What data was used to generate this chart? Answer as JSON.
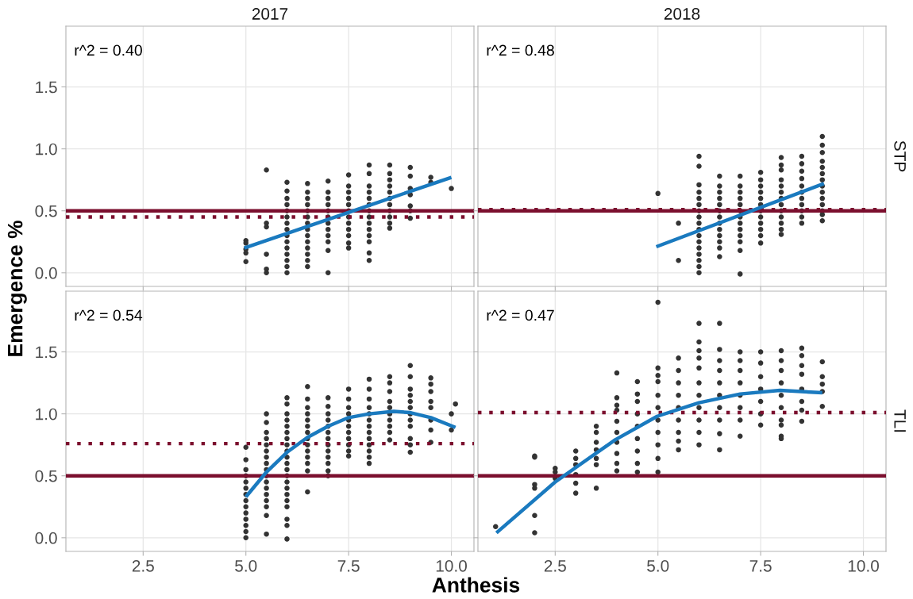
{
  "chart_data": [
    {
      "type": "scatter",
      "title": "2017",
      "ylabel": "Emergence %",
      "annotations": [
        "r^2 = 0.40"
      ],
      "xlim": [
        0.62,
        10.55
      ],
      "ylim": [
        -0.11,
        1.99
      ],
      "xticks": [
        2.5,
        5,
        7.5,
        10
      ],
      "yticks": [
        {
          "value": 0,
          "label": "0.0"
        },
        {
          "value": 0.5,
          "label": "0.5"
        },
        {
          "value": 1,
          "label": "1.0"
        },
        {
          "value": 1.5,
          "label": "1.5"
        }
      ],
      "grid": true,
      "tick_labels": "y",
      "ref_lines": [
        {
          "axis": "y",
          "value": 0.5,
          "color": "#7b0f2e",
          "line_style": "solid"
        },
        {
          "axis": "y",
          "value": 0.45,
          "color": "#7b0f2e",
          "line_style": "dotted"
        }
      ],
      "series": [
        {
          "marker": "circle",
          "color": "#333333",
          "x": [
            5,
            5,
            5,
            5,
            5,
            5.5,
            5.5,
            5.5,
            5.5,
            5.5,
            5.5,
            6,
            6,
            6,
            6,
            6,
            6,
            6,
            6,
            6,
            6,
            6,
            6,
            6,
            6,
            6,
            6.5,
            6.5,
            6.5,
            6.5,
            6.5,
            6.5,
            6.5,
            6.5,
            6.5,
            6.5,
            6.5,
            6.5,
            6.5,
            6.5,
            7,
            7,
            7,
            7,
            7,
            7,
            7,
            7,
            7,
            7,
            7,
            7,
            7.5,
            7.5,
            7.5,
            7.5,
            7.5,
            7.5,
            7.5,
            7.5,
            7.5,
            7.5,
            7.5,
            7.5,
            8,
            8,
            8,
            8,
            8,
            8,
            8,
            8,
            8,
            8,
            8,
            8,
            8,
            8,
            8.5,
            8.5,
            8.5,
            8.5,
            8.5,
            8.5,
            8.5,
            8.5,
            8.5,
            8.5,
            8.5,
            9,
            9,
            9,
            9,
            9,
            9,
            9,
            9.5,
            9.5,
            10
          ],
          "values": [
            0.26,
            0.24,
            0.19,
            0.16,
            0.09,
            0.83,
            0.4,
            0.37,
            0.15,
            0.03,
            0.0,
            0.73,
            0.66,
            0.6,
            0.55,
            0.5,
            0.45,
            0.4,
            0.35,
            0.3,
            0.25,
            0.2,
            0.15,
            0.1,
            0.05,
            0.0,
            0.72,
            0.65,
            0.6,
            0.55,
            0.5,
            0.45,
            0.4,
            0.35,
            0.3,
            0.25,
            0.2,
            0.15,
            0.1,
            0.05,
            0.74,
            0.65,
            0.6,
            0.55,
            0.5,
            0.45,
            0.4,
            0.35,
            0.3,
            0.25,
            0.18,
            0.0,
            0.79,
            0.7,
            0.65,
            0.6,
            0.55,
            0.5,
            0.45,
            0.4,
            0.35,
            0.3,
            0.24,
            0.2,
            0.87,
            0.8,
            0.7,
            0.65,
            0.6,
            0.55,
            0.5,
            0.45,
            0.4,
            0.35,
            0.3,
            0.25,
            0.16,
            0.1,
            0.87,
            0.8,
            0.75,
            0.7,
            0.65,
            0.6,
            0.55,
            0.5,
            0.45,
            0.4,
            0.36,
            0.85,
            0.78,
            0.68,
            0.63,
            0.54,
            0.5,
            0.44,
            0.77,
            0.73,
            0.68
          ]
        },
        {
          "type": "line",
          "color": "#1a7abf",
          "x": [
            4.96,
            10.0
          ],
          "values": [
            0.2,
            0.77
          ]
        }
      ]
    },
    {
      "type": "scatter",
      "title": "2018",
      "y2label": "STP",
      "annotations": [
        "r^2 = 0.48"
      ],
      "xlim": [
        0.62,
        10.55
      ],
      "ylim": [
        -0.11,
        1.99
      ],
      "xticks": [
        2.5,
        5,
        7.5,
        10
      ],
      "yticks": [
        0,
        0.5,
        1,
        1.5
      ],
      "grid": true,
      "tick_labels": false,
      "ref_lines": [
        {
          "axis": "y",
          "value": 0.5,
          "color": "#7b0f2e",
          "line_style": "solid"
        },
        {
          "axis": "y",
          "value": 0.51,
          "color": "#7b0f2e",
          "line_style": "dotted"
        }
      ],
      "series": [
        {
          "marker": "circle",
          "color": "#333333",
          "x": [
            5,
            5.5,
            5.5,
            6,
            6,
            6,
            6,
            6,
            6,
            6,
            6,
            6,
            6,
            6,
            6,
            6,
            6,
            6,
            6,
            6,
            6.5,
            6.5,
            6.5,
            6.5,
            6.5,
            6.5,
            6.5,
            6.5,
            6.5,
            6.5,
            6.5,
            6.5,
            6.5,
            7,
            7,
            7,
            7,
            7,
            7,
            7,
            7,
            7,
            7,
            7,
            7,
            7,
            7.5,
            7.5,
            7.5,
            7.5,
            7.5,
            7.5,
            7.5,
            7.5,
            7.5,
            7.5,
            7.5,
            7.5,
            8,
            8,
            8,
            8,
            8,
            8,
            8,
            8,
            8,
            8,
            8,
            8,
            8,
            8.5,
            8.5,
            8.5,
            8.5,
            8.5,
            8.5,
            8.5,
            8.5,
            8.5,
            8.5,
            8.5,
            9,
            9,
            9,
            9,
            9,
            9,
            9,
            9,
            9,
            9,
            9,
            9,
            9,
            9
          ],
          "values": [
            0.64,
            0.4,
            0.1,
            0.94,
            0.86,
            0.71,
            0.65,
            0.6,
            0.55,
            0.5,
            0.45,
            0.4,
            0.35,
            0.3,
            0.25,
            0.2,
            0.15,
            0.1,
            0.05,
            0.0,
            0.78,
            0.7,
            0.65,
            0.6,
            0.55,
            0.5,
            0.45,
            0.4,
            0.35,
            0.3,
            0.25,
            0.2,
            0.13,
            0.78,
            0.7,
            0.65,
            0.6,
            0.55,
            0.5,
            0.45,
            0.4,
            0.35,
            0.3,
            0.25,
            0.18,
            -0.01,
            0.81,
            0.75,
            0.7,
            0.65,
            0.6,
            0.55,
            0.5,
            0.45,
            0.4,
            0.35,
            0.3,
            0.24,
            0.93,
            0.87,
            0.83,
            0.75,
            0.7,
            0.65,
            0.6,
            0.55,
            0.5,
            0.45,
            0.4,
            0.35,
            0.31,
            0.94,
            0.88,
            0.82,
            0.76,
            0.7,
            0.65,
            0.6,
            0.55,
            0.5,
            0.45,
            0.4,
            1.1,
            1.03,
            0.97,
            0.9,
            0.85,
            0.8,
            0.75,
            0.7,
            0.65,
            0.6,
            0.55,
            0.5,
            0.47,
            0.42
          ]
        },
        {
          "type": "line",
          "color": "#1a7abf",
          "x": [
            4.96,
            9.04
          ],
          "values": [
            0.21,
            0.72
          ]
        }
      ]
    },
    {
      "type": "scatter",
      "xlabel": "Anthesis",
      "annotations": [
        "r^2 = 0.54"
      ],
      "xlim": [
        0.62,
        10.55
      ],
      "ylim": [
        -0.11,
        1.99
      ],
      "xticks": [
        {
          "value": 2.5,
          "label": "2.5"
        },
        {
          "value": 5,
          "label": "5.0"
        },
        {
          "value": 7.5,
          "label": "7.5"
        },
        {
          "value": 10,
          "label": "10.0"
        }
      ],
      "yticks": [
        {
          "value": 0,
          "label": "0.0"
        },
        {
          "value": 0.5,
          "label": "0.5"
        },
        {
          "value": 1,
          "label": "1.0"
        },
        {
          "value": 1.5,
          "label": "1.5"
        }
      ],
      "grid": true,
      "ref_lines": [
        {
          "axis": "y",
          "value": 0.5,
          "color": "#7b0f2e",
          "line_style": "solid"
        },
        {
          "axis": "y",
          "value": 0.76,
          "color": "#7b0f2e",
          "line_style": "dotted"
        }
      ],
      "series": [
        {
          "marker": "circle",
          "color": "#333333",
          "x": [
            5,
            5,
            5,
            5,
            5,
            5,
            5,
            5,
            5,
            5,
            5,
            5,
            5,
            5,
            5.5,
            5.5,
            5.5,
            5.5,
            5.5,
            5.5,
            5.5,
            5.5,
            5.5,
            5.5,
            5.5,
            5.5,
            5.5,
            5.5,
            5.5,
            5.5,
            5.5,
            6,
            6,
            6,
            6,
            6,
            6,
            6,
            6,
            6,
            6,
            6,
            6,
            6,
            6,
            6,
            6,
            6,
            6,
            6,
            6,
            6,
            6.5,
            6.5,
            6.5,
            6.5,
            6.5,
            6.5,
            6.5,
            6.5,
            6.5,
            6.5,
            6.5,
            6.5,
            6.5,
            6.5,
            7,
            7,
            7,
            7,
            7,
            7,
            7,
            7,
            7,
            7,
            7,
            7,
            7,
            7.5,
            7.5,
            7.5,
            7.5,
            7.5,
            7.5,
            7.5,
            7.5,
            7.5,
            7.5,
            7.5,
            8,
            8,
            8,
            8,
            8,
            8,
            8,
            8,
            8,
            8,
            8,
            8,
            8,
            8.5,
            8.5,
            8.5,
            8.5,
            8.5,
            8.5,
            8.5,
            8.5,
            8.5,
            8.5,
            9,
            9,
            9,
            9,
            9,
            9,
            9,
            9,
            9,
            9,
            9,
            9,
            9.5,
            9.5,
            9.5,
            9.5,
            9.5,
            9.5,
            9.5,
            9.5,
            10,
            10,
            10.1
          ],
          "values": [
            0.73,
            0.63,
            0.55,
            0.5,
            0.45,
            0.4,
            0.35,
            0.3,
            0.25,
            0.2,
            0.15,
            0.1,
            0.05,
            0.0,
            1.0,
            0.93,
            0.85,
            0.8,
            0.75,
            0.7,
            0.65,
            0.6,
            0.55,
            0.5,
            0.45,
            0.4,
            0.35,
            0.3,
            0.25,
            0.18,
            0.03,
            1.13,
            1.08,
            1.0,
            0.95,
            0.9,
            0.85,
            0.8,
            0.75,
            0.7,
            0.65,
            0.6,
            0.55,
            0.5,
            0.45,
            0.4,
            0.35,
            0.3,
            0.25,
            0.15,
            0.1,
            -0.01,
            1.22,
            1.12,
            1.05,
            1.0,
            0.95,
            0.9,
            0.85,
            0.8,
            0.75,
            0.7,
            0.65,
            0.6,
            0.54,
            0.37,
            1.13,
            1.06,
            1.0,
            0.95,
            0.9,
            0.85,
            0.8,
            0.75,
            0.7,
            0.65,
            0.6,
            0.54,
            0.5,
            1.2,
            1.12,
            1.05,
            1.0,
            0.95,
            0.9,
            0.85,
            0.8,
            0.75,
            0.7,
            0.66,
            1.28,
            1.2,
            1.12,
            1.05,
            1.0,
            0.95,
            0.9,
            0.85,
            0.8,
            0.75,
            0.7,
            0.65,
            0.6,
            1.3,
            1.25,
            1.18,
            1.1,
            1.05,
            1.0,
            0.95,
            0.9,
            0.85,
            0.79,
            1.39,
            1.3,
            1.2,
            1.15,
            1.1,
            1.05,
            1.0,
            0.95,
            0.9,
            0.8,
            0.75,
            0.69,
            1.29,
            1.24,
            1.18,
            1.1,
            1.05,
            0.95,
            0.87,
            0.77,
            1.0,
            0.87,
            1.08
          ]
        },
        {
          "type": "line",
          "color": "#1a7abf",
          "x": [
            5.0,
            5.5,
            6.0,
            6.5,
            7.0,
            7.5,
            8.0,
            8.6,
            9.0,
            9.5,
            10.1
          ],
          "values": [
            0.33,
            0.53,
            0.69,
            0.81,
            0.9,
            0.97,
            1.0,
            1.02,
            1.01,
            0.97,
            0.89
          ]
        }
      ]
    },
    {
      "type": "scatter",
      "y2label": "TLI",
      "annotations": [
        "r^2 = 0.47"
      ],
      "xlim": [
        0.62,
        10.55
      ],
      "ylim": [
        -0.11,
        1.99
      ],
      "xticks": [
        {
          "value": 2.5,
          "label": "2.5"
        },
        {
          "value": 5,
          "label": "5.0"
        },
        {
          "value": 7.5,
          "label": "7.5"
        },
        {
          "value": 10,
          "label": "10.0"
        }
      ],
      "yticks": [
        0,
        0.5,
        1,
        1.5
      ],
      "grid": true,
      "tick_labels": "x",
      "ref_lines": [
        {
          "axis": "y",
          "value": 0.5,
          "color": "#7b0f2e",
          "line_style": "solid"
        },
        {
          "axis": "y",
          "value": 1.01,
          "color": "#7b0f2e",
          "line_style": "dotted"
        }
      ],
      "series": [
        {
          "marker": "circle",
          "color": "#333333",
          "x": [
            1.05,
            2,
            2,
            2,
            2,
            2,
            2,
            2.5,
            2.5,
            2.5,
            3,
            3,
            3,
            3,
            3,
            3,
            3.5,
            3.5,
            3.5,
            3.5,
            3.5,
            3.5,
            3.5,
            4,
            4,
            4,
            4,
            4,
            4,
            4,
            4,
            4,
            4,
            4.5,
            4.5,
            4.5,
            4.5,
            4.5,
            4.5,
            4.5,
            4.5,
            4.5,
            5,
            5,
            5,
            5,
            5,
            5,
            5,
            5,
            5,
            5,
            5,
            5.5,
            5.5,
            5.5,
            5.5,
            5.5,
            5.5,
            5.5,
            5.5,
            5.5,
            6,
            6,
            6,
            6,
            6,
            6,
            6,
            6,
            6,
            6,
            6,
            6.5,
            6.5,
            6.5,
            6.5,
            6.5,
            6.5,
            6.5,
            6.5,
            6.5,
            6.5,
            7,
            7,
            7,
            7,
            7,
            7,
            7,
            7,
            7.5,
            7.5,
            7.5,
            7.5,
            7.5,
            7.5,
            7.5,
            8,
            8,
            8,
            8,
            8,
            8,
            8,
            8,
            8,
            8,
            8.5,
            8.5,
            8.5,
            8.5,
            8.5,
            8.5,
            8.5,
            8.5,
            9,
            9,
            9,
            9,
            9
          ],
          "values": [
            0.09,
            0.66,
            0.65,
            0.43,
            0.4,
            0.18,
            0.04,
            0.56,
            0.53,
            0.48,
            0.7,
            0.64,
            0.59,
            0.51,
            0.44,
            0.36,
            0.9,
            0.85,
            0.77,
            0.71,
            0.64,
            0.59,
            0.4,
            1.33,
            1.13,
            1.07,
            1.03,
            0.94,
            0.85,
            0.77,
            0.68,
            0.6,
            0.54,
            1.26,
            1.16,
            1.1,
            1.0,
            0.9,
            0.8,
            0.7,
            0.6,
            0.53,
            1.9,
            1.37,
            1.31,
            1.26,
            1.15,
            1.05,
            0.95,
            0.85,
            0.75,
            0.64,
            0.53,
            1.45,
            1.35,
            1.25,
            1.15,
            1.05,
            0.95,
            0.85,
            0.78,
            0.71,
            1.73,
            1.58,
            1.51,
            1.45,
            1.37,
            1.25,
            1.15,
            1.05,
            0.95,
            0.85,
            0.75,
            1.73,
            1.52,
            1.43,
            1.35,
            1.25,
            1.15,
            1.05,
            0.95,
            0.84,
            0.71,
            1.5,
            1.43,
            1.35,
            1.25,
            1.15,
            1.05,
            0.95,
            0.82,
            1.5,
            1.41,
            1.3,
            1.2,
            1.1,
            1.0,
            0.91,
            1.51,
            1.43,
            1.35,
            1.25,
            1.15,
            1.05,
            0.95,
            0.91,
            0.82,
            0.8,
            1.53,
            1.47,
            1.39,
            1.32,
            1.2,
            1.1,
            1.03,
            0.94,
            1.42,
            1.3,
            1.24,
            1.18,
            1.06
          ]
        },
        {
          "type": "line",
          "color": "#1a7abf",
          "x": [
            1.07,
            2.5,
            3.96,
            4.98,
            6.0,
            7.0,
            7.97,
            9.0
          ],
          "values": [
            0.04,
            0.45,
            0.79,
            0.98,
            1.09,
            1.16,
            1.19,
            1.17
          ]
        }
      ]
    }
  ]
}
